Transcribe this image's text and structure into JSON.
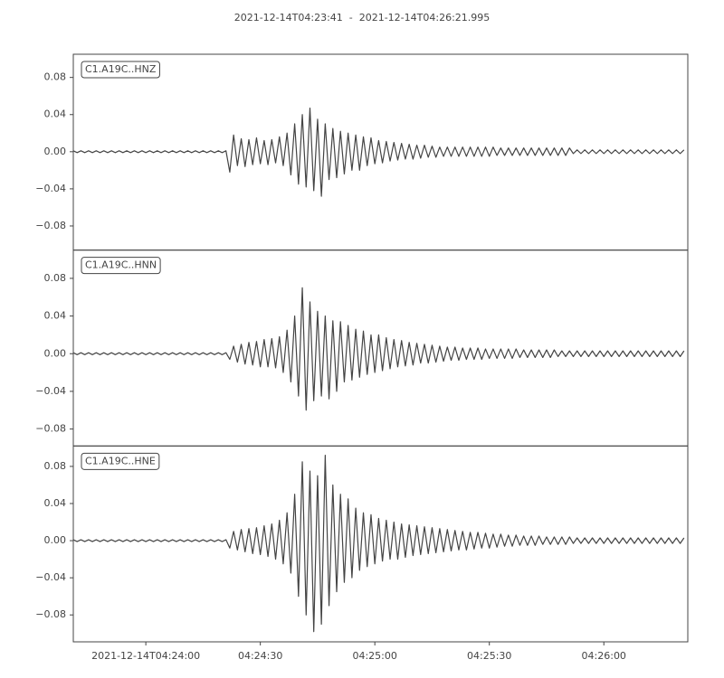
{
  "chart_data": {
    "type": "line",
    "title": "2021-12-14T04:23:41  -  2021-12-14T04:26:21.995",
    "color": "#444444",
    "xlim": [
      "2021-12-14T04:23:41",
      "2021-12-14T04:26:21.995"
    ],
    "xticks": [
      "2021-12-14T04:24:00",
      {
        "value": "2021-12-14T04:24:30",
        "label": "04:24:30"
      },
      {
        "value": "2021-12-14T04:25:00",
        "label": "04:25:00"
      },
      {
        "value": "2021-12-14T04:25:30",
        "label": "04:25:30"
      },
      {
        "value": "2021-12-14T04:26:00",
        "label": "04:26:00"
      }
    ],
    "x": [
      "2021-12-14T04:23:41",
      "2021-12-14T04:23:42",
      "2021-12-14T04:23:43",
      "2021-12-14T04:23:44",
      "2021-12-14T04:23:45",
      "2021-12-14T04:23:46",
      "2021-12-14T04:23:47",
      "2021-12-14T04:23:48",
      "2021-12-14T04:23:49",
      "2021-12-14T04:23:50",
      "2021-12-14T04:23:51",
      "2021-12-14T04:23:52",
      "2021-12-14T04:23:53",
      "2021-12-14T04:23:54",
      "2021-12-14T04:23:55",
      "2021-12-14T04:23:56",
      "2021-12-14T04:23:57",
      "2021-12-14T04:23:58",
      "2021-12-14T04:23:59",
      "2021-12-14T04:24:00",
      "2021-12-14T04:24:01",
      "2021-12-14T04:24:02",
      "2021-12-14T04:24:03",
      "2021-12-14T04:24:04",
      "2021-12-14T04:24:05",
      "2021-12-14T04:24:06",
      "2021-12-14T04:24:07",
      "2021-12-14T04:24:08",
      "2021-12-14T04:24:09",
      "2021-12-14T04:24:10",
      "2021-12-14T04:24:11",
      "2021-12-14T04:24:12",
      "2021-12-14T04:24:13",
      "2021-12-14T04:24:14",
      "2021-12-14T04:24:15",
      "2021-12-14T04:24:16",
      "2021-12-14T04:24:17",
      "2021-12-14T04:24:18",
      "2021-12-14T04:24:19",
      "2021-12-14T04:24:20",
      "2021-12-14T04:24:21",
      "2021-12-14T04:24:22",
      "2021-12-14T04:24:23",
      "2021-12-14T04:24:24",
      "2021-12-14T04:24:25",
      "2021-12-14T04:24:26",
      "2021-12-14T04:24:27",
      "2021-12-14T04:24:28",
      "2021-12-14T04:24:29",
      "2021-12-14T04:24:30",
      "2021-12-14T04:24:31",
      "2021-12-14T04:24:32",
      "2021-12-14T04:24:33",
      "2021-12-14T04:24:34",
      "2021-12-14T04:24:35",
      "2021-12-14T04:24:36",
      "2021-12-14T04:24:37",
      "2021-12-14T04:24:38",
      "2021-12-14T04:24:39",
      "2021-12-14T04:24:40",
      "2021-12-14T04:24:41",
      "2021-12-14T04:24:42",
      "2021-12-14T04:24:43",
      "2021-12-14T04:24:44",
      "2021-12-14T04:24:45",
      "2021-12-14T04:24:46",
      "2021-12-14T04:24:47",
      "2021-12-14T04:24:48",
      "2021-12-14T04:24:49",
      "2021-12-14T04:24:50",
      "2021-12-14T04:24:51",
      "2021-12-14T04:24:52",
      "2021-12-14T04:24:53",
      "2021-12-14T04:24:54",
      "2021-12-14T04:24:55",
      "2021-12-14T04:24:56",
      "2021-12-14T04:24:57",
      "2021-12-14T04:24:58",
      "2021-12-14T04:24:59",
      "2021-12-14T04:25:00",
      "2021-12-14T04:25:01",
      "2021-12-14T04:25:02",
      "2021-12-14T04:25:03",
      "2021-12-14T04:25:04",
      "2021-12-14T04:25:05",
      "2021-12-14T04:25:06",
      "2021-12-14T04:25:07",
      "2021-12-14T04:25:08",
      "2021-12-14T04:25:09",
      "2021-12-14T04:25:10",
      "2021-12-14T04:25:11",
      "2021-12-14T04:25:12",
      "2021-12-14T04:25:13",
      "2021-12-14T04:25:14",
      "2021-12-14T04:25:15",
      "2021-12-14T04:25:16",
      "2021-12-14T04:25:17",
      "2021-12-14T04:25:18",
      "2021-12-14T04:25:19",
      "2021-12-14T04:25:20",
      "2021-12-14T04:25:21",
      "2021-12-14T04:25:22",
      "2021-12-14T04:25:23",
      "2021-12-14T04:25:24",
      "2021-12-14T04:25:25",
      "2021-12-14T04:25:26",
      "2021-12-14T04:25:27",
      "2021-12-14T04:25:28",
      "2021-12-14T04:25:29",
      "2021-12-14T04:25:30",
      "2021-12-14T04:25:31",
      "2021-12-14T04:25:32",
      "2021-12-14T04:25:33",
      "2021-12-14T04:25:34",
      "2021-12-14T04:25:35",
      "2021-12-14T04:25:36",
      "2021-12-14T04:25:37",
      "2021-12-14T04:25:38",
      "2021-12-14T04:25:39",
      "2021-12-14T04:25:40",
      "2021-12-14T04:25:41",
      "2021-12-14T04:25:42",
      "2021-12-14T04:25:43",
      "2021-12-14T04:25:44",
      "2021-12-14T04:25:45",
      "2021-12-14T04:25:46",
      "2021-12-14T04:25:47",
      "2021-12-14T04:25:48",
      "2021-12-14T04:25:49",
      "2021-12-14T04:25:50",
      "2021-12-14T04:25:51",
      "2021-12-14T04:25:52",
      "2021-12-14T04:25:53",
      "2021-12-14T04:25:54",
      "2021-12-14T04:25:55",
      "2021-12-14T04:25:56",
      "2021-12-14T04:25:57",
      "2021-12-14T04:25:58",
      "2021-12-14T04:25:59",
      "2021-12-14T04:26:00",
      "2021-12-14T04:26:01",
      "2021-12-14T04:26:02",
      "2021-12-14T04:26:03",
      "2021-12-14T04:26:04",
      "2021-12-14T04:26:05",
      "2021-12-14T04:26:06",
      "2021-12-14T04:26:07",
      "2021-12-14T04:26:08",
      "2021-12-14T04:26:09",
      "2021-12-14T04:26:10",
      "2021-12-14T04:26:11",
      "2021-12-14T04:26:12",
      "2021-12-14T04:26:13",
      "2021-12-14T04:26:14",
      "2021-12-14T04:26:15",
      "2021-12-14T04:26:16",
      "2021-12-14T04:26:17",
      "2021-12-14T04:26:18",
      "2021-12-14T04:26:19",
      "2021-12-14T04:26:20",
      "2021-12-14T04:26:21"
    ],
    "panels": [
      {
        "name": "C1.A19C..HNZ",
        "ylim": [
          -0.106,
          0.105
        ],
        "yticks": [
          {
            "value": -0.08,
            "label": "−0.08"
          },
          {
            "value": -0.04,
            "label": "−0.04"
          },
          {
            "value": 0,
            "label": "0.00"
          },
          0.04,
          0.08
        ],
        "values": [
          0.001,
          -0.001,
          0.001,
          -0.001,
          0.001,
          -0.001,
          0.001,
          -0.001,
          0.001,
          -0.001,
          0.001,
          -0.001,
          0.001,
          -0.001,
          0.001,
          -0.001,
          0.001,
          -0.001,
          0.001,
          -0.001,
          0.001,
          -0.001,
          0.001,
          -0.001,
          0.001,
          -0.001,
          0.001,
          -0.001,
          0.001,
          -0.001,
          0.001,
          -0.001,
          0.001,
          -0.001,
          0.001,
          -0.001,
          0.001,
          -0.001,
          0.001,
          -0.001,
          0.001,
          -0.022,
          0.018,
          -0.015,
          0.014,
          -0.016,
          0.013,
          -0.014,
          0.015,
          -0.013,
          0.012,
          -0.014,
          0.013,
          -0.012,
          0.016,
          -0.015,
          0.02,
          -0.025,
          0.03,
          -0.035,
          0.04,
          -0.038,
          0.047,
          -0.042,
          0.035,
          -0.048,
          0.03,
          -0.03,
          0.025,
          -0.028,
          0.022,
          -0.024,
          0.02,
          -0.02,
          0.018,
          -0.02,
          0.016,
          -0.015,
          0.015,
          -0.013,
          0.012,
          -0.012,
          0.011,
          -0.01,
          0.01,
          -0.009,
          0.009,
          -0.008,
          0.008,
          -0.008,
          0.007,
          -0.007,
          0.007,
          -0.006,
          0.006,
          -0.006,
          0.005,
          -0.005,
          0.005,
          -0.005,
          0.005,
          -0.005,
          0.005,
          -0.005,
          0.005,
          -0.005,
          0.005,
          -0.005,
          0.005,
          -0.005,
          0.005,
          -0.004,
          0.004,
          -0.004,
          0.004,
          -0.004,
          0.004,
          -0.004,
          0.004,
          -0.004,
          0.004,
          -0.004,
          0.004,
          -0.004,
          0.004,
          -0.004,
          0.004,
          -0.004,
          0.004,
          -0.004,
          0.004,
          -0.002,
          0.002,
          -0.002,
          0.002,
          -0.002,
          0.002,
          -0.002,
          0.002,
          -0.002,
          0.002,
          -0.002,
          0.002,
          -0.002,
          0.002,
          -0.002,
          0.002,
          -0.002,
          0.002,
          -0.002,
          0.002,
          -0.002,
          0.002,
          -0.002,
          0.002,
          -0.002,
          0.002,
          -0.002,
          0.002,
          -0.002,
          0.002
        ]
      },
      {
        "name": "C1.A19C..HNN",
        "ylim": [
          -0.098,
          0.11
        ],
        "yticks": [
          {
            "value": -0.08,
            "label": "−0.08"
          },
          {
            "value": -0.04,
            "label": "−0.04"
          },
          {
            "value": 0,
            "label": "0.00"
          },
          0.04,
          0.08
        ],
        "values": [
          0.001,
          -0.001,
          0.001,
          -0.001,
          0.001,
          -0.001,
          0.001,
          -0.001,
          0.001,
          -0.001,
          0.001,
          -0.001,
          0.001,
          -0.001,
          0.001,
          -0.001,
          0.001,
          -0.001,
          0.001,
          -0.001,
          0.001,
          -0.001,
          0.001,
          -0.001,
          0.001,
          -0.001,
          0.001,
          -0.001,
          0.001,
          -0.001,
          0.001,
          -0.001,
          0.001,
          -0.001,
          0.001,
          -0.001,
          0.001,
          -0.001,
          0.001,
          -0.001,
          0.001,
          -0.006,
          0.008,
          -0.009,
          0.01,
          -0.011,
          0.012,
          -0.012,
          0.013,
          -0.014,
          0.015,
          -0.014,
          0.016,
          -0.015,
          0.018,
          -0.02,
          0.025,
          -0.03,
          0.04,
          -0.045,
          0.07,
          -0.06,
          0.055,
          -0.05,
          0.045,
          -0.045,
          0.04,
          -0.048,
          0.035,
          -0.04,
          0.034,
          -0.03,
          0.03,
          -0.028,
          0.026,
          -0.025,
          0.024,
          -0.022,
          0.02,
          -0.02,
          0.02,
          -0.018,
          0.017,
          -0.016,
          0.015,
          -0.014,
          0.014,
          -0.013,
          0.012,
          -0.012,
          0.011,
          -0.01,
          0.01,
          -0.01,
          0.009,
          -0.009,
          0.008,
          -0.008,
          0.007,
          -0.007,
          0.007,
          -0.007,
          0.006,
          -0.006,
          0.006,
          -0.006,
          0.006,
          -0.006,
          0.005,
          -0.005,
          0.005,
          -0.005,
          0.005,
          -0.005,
          0.005,
          -0.005,
          0.005,
          -0.004,
          0.004,
          -0.004,
          0.004,
          -0.004,
          0.004,
          -0.004,
          0.004,
          -0.004,
          0.004,
          -0.003,
          0.003,
          -0.003,
          0.003,
          -0.003,
          0.003,
          -0.003,
          0.003,
          -0.003,
          0.003,
          -0.003,
          0.003,
          -0.003,
          0.003,
          -0.003,
          0.003,
          -0.003,
          0.003,
          -0.003,
          0.003,
          -0.003,
          0.003,
          -0.003,
          0.003,
          -0.003,
          0.003,
          -0.003,
          0.003,
          -0.003,
          0.003,
          -0.003,
          0.003,
          -0.003,
          0.003
        ]
      },
      {
        "name": "C1.A19C..HNE",
        "ylim": [
          -0.109,
          0.102
        ],
        "yticks": [
          {
            "value": -0.08,
            "label": "−0.08"
          },
          {
            "value": -0.04,
            "label": "−0.04"
          },
          {
            "value": 0,
            "label": "0.00"
          },
          0.04,
          0.08
        ],
        "values": [
          0.001,
          -0.001,
          0.001,
          -0.001,
          0.001,
          -0.001,
          0.001,
          -0.001,
          0.001,
          -0.001,
          0.001,
          -0.001,
          0.001,
          -0.001,
          0.001,
          -0.001,
          0.001,
          -0.001,
          0.001,
          -0.001,
          0.001,
          -0.001,
          0.001,
          -0.001,
          0.001,
          -0.001,
          0.001,
          -0.001,
          0.001,
          -0.001,
          0.001,
          -0.001,
          0.001,
          -0.001,
          0.001,
          -0.001,
          0.001,
          -0.001,
          0.001,
          -0.001,
          0.001,
          -0.008,
          0.01,
          -0.01,
          0.012,
          -0.012,
          0.013,
          -0.014,
          0.014,
          -0.015,
          0.016,
          -0.017,
          0.018,
          -0.02,
          0.022,
          -0.025,
          0.03,
          -0.035,
          0.05,
          -0.06,
          0.085,
          -0.08,
          0.075,
          -0.098,
          0.07,
          -0.09,
          0.092,
          -0.07,
          0.06,
          -0.055,
          0.05,
          -0.045,
          0.045,
          -0.04,
          0.035,
          -0.032,
          0.03,
          -0.028,
          0.028,
          -0.025,
          0.024,
          -0.022,
          0.022,
          -0.02,
          0.02,
          -0.02,
          0.018,
          -0.018,
          0.017,
          -0.016,
          0.016,
          -0.015,
          0.015,
          -0.014,
          0.014,
          -0.013,
          0.013,
          -0.012,
          0.012,
          -0.011,
          0.011,
          -0.01,
          0.01,
          -0.01,
          0.009,
          -0.009,
          0.009,
          -0.008,
          0.008,
          -0.008,
          0.007,
          -0.007,
          0.007,
          -0.006,
          0.006,
          -0.006,
          0.006,
          -0.005,
          0.005,
          -0.005,
          0.005,
          -0.005,
          0.005,
          -0.004,
          0.004,
          -0.004,
          0.004,
          -0.004,
          0.004,
          -0.004,
          0.004,
          -0.003,
          0.003,
          -0.003,
          0.003,
          -0.003,
          0.003,
          -0.003,
          0.003,
          -0.003,
          0.003,
          -0.003,
          0.003,
          -0.003,
          0.003,
          -0.003,
          0.003,
          -0.003,
          0.003,
          -0.003,
          0.003,
          -0.003,
          0.003,
          -0.003,
          0.003,
          -0.003,
          0.003,
          -0.003,
          0.003,
          -0.003,
          0.003
        ]
      }
    ]
  }
}
